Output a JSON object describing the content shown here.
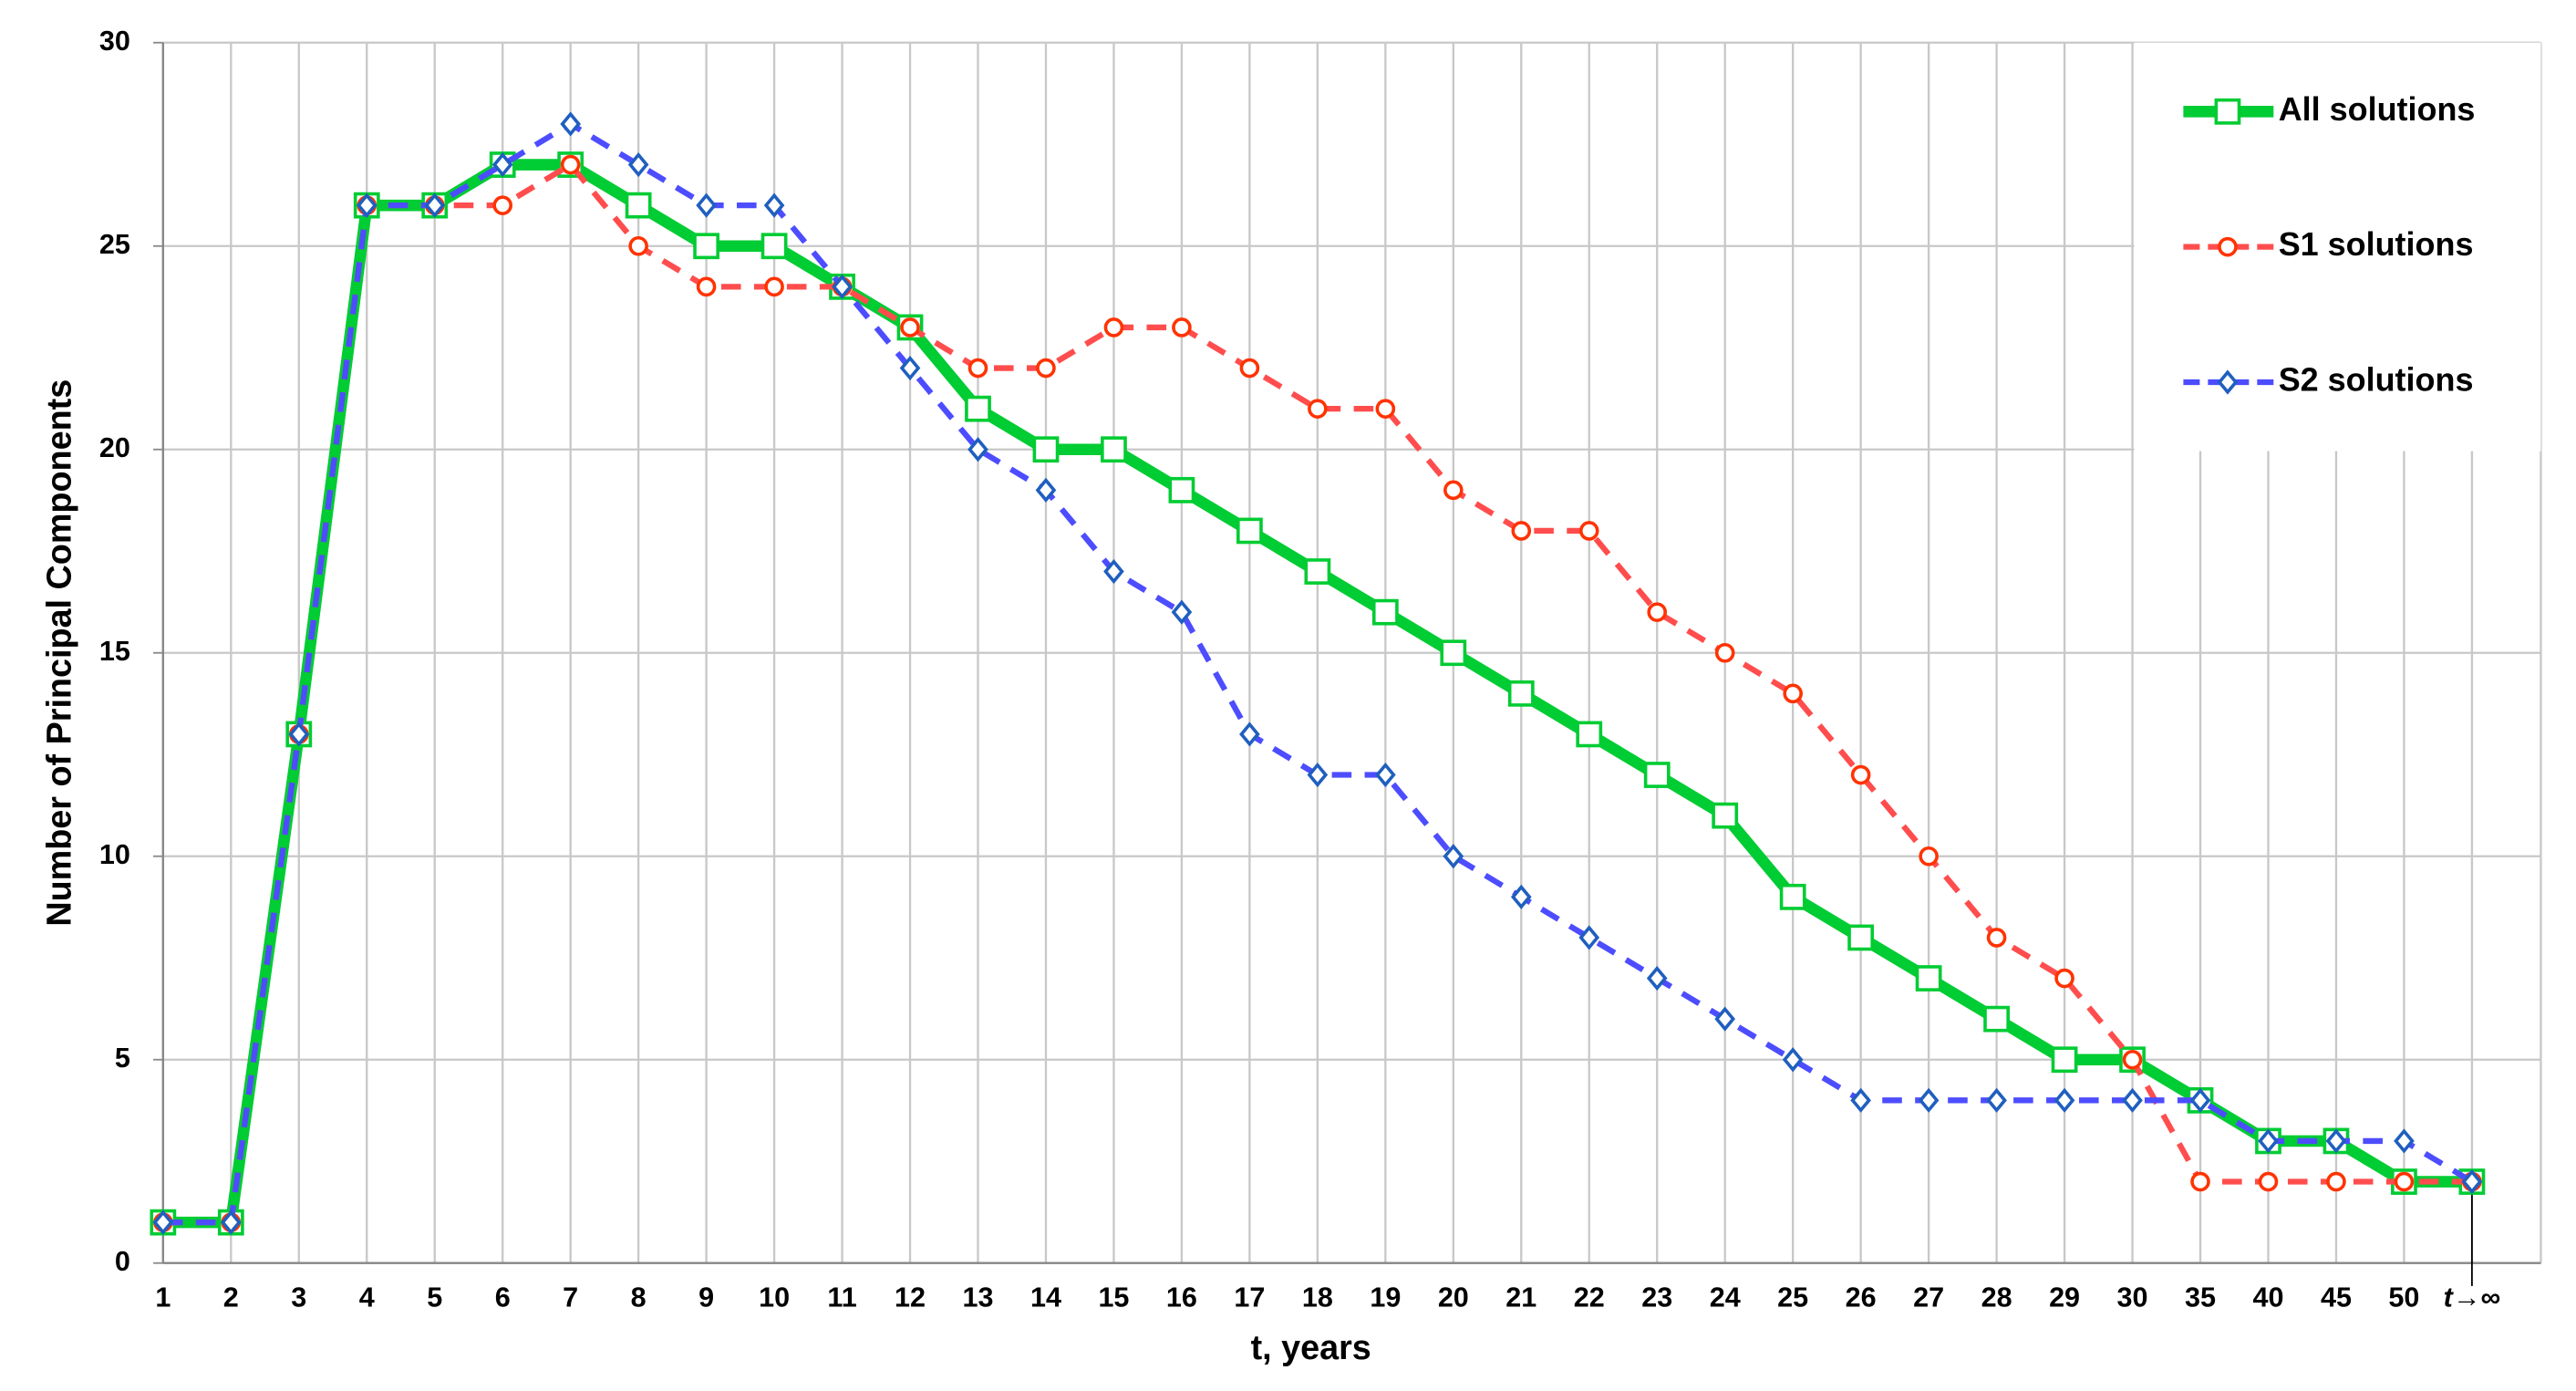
{
  "chart_data": {
    "type": "line",
    "xlabel": "t, years",
    "ylabel": "Number of Principal Components",
    "categories": [
      "1",
      "2",
      "3",
      "4",
      "5",
      "6",
      "7",
      "8",
      "9",
      "10",
      "11",
      "12",
      "13",
      "14",
      "15",
      "16",
      "17",
      "18",
      "19",
      "20",
      "21",
      "22",
      "23",
      "24",
      "25",
      "26",
      "27",
      "28",
      "29",
      "30",
      "35",
      "40",
      "45",
      "50",
      "t→∞"
    ],
    "series": [
      {
        "name": "All solutions",
        "color": "#00cc33",
        "values": [
          1,
          1,
          13,
          26,
          26,
          27,
          27,
          26,
          25,
          25,
          24,
          23,
          21,
          20,
          20,
          19,
          18,
          17,
          16,
          15,
          14,
          13,
          12,
          11,
          9,
          8,
          7,
          6,
          5,
          5,
          4,
          3,
          3,
          2,
          2
        ]
      },
      {
        "name": "S1 solutions",
        "color": "#ff4d4d",
        "values": [
          1,
          1,
          13,
          26,
          26,
          26,
          27,
          25,
          24,
          24,
          24,
          23,
          22,
          22,
          23,
          23,
          22,
          21,
          21,
          19,
          18,
          18,
          16,
          15,
          14,
          12,
          10,
          8,
          7,
          5,
          2,
          2,
          2,
          2,
          2
        ]
      },
      {
        "name": "S2 solutions",
        "color": "#4d4dff",
        "values": [
          1,
          1,
          13,
          26,
          26,
          27,
          28,
          27,
          26,
          26,
          24,
          22,
          20,
          19,
          17,
          16,
          13,
          12,
          12,
          10,
          9,
          8,
          7,
          6,
          5,
          4,
          4,
          4,
          4,
          4,
          4,
          3,
          3,
          3,
          2
        ]
      }
    ],
    "ylim": [
      0,
      30
    ],
    "yticks": [
      0,
      5,
      10,
      15,
      20,
      25,
      30
    ],
    "grid": true,
    "legend": "upper right"
  }
}
